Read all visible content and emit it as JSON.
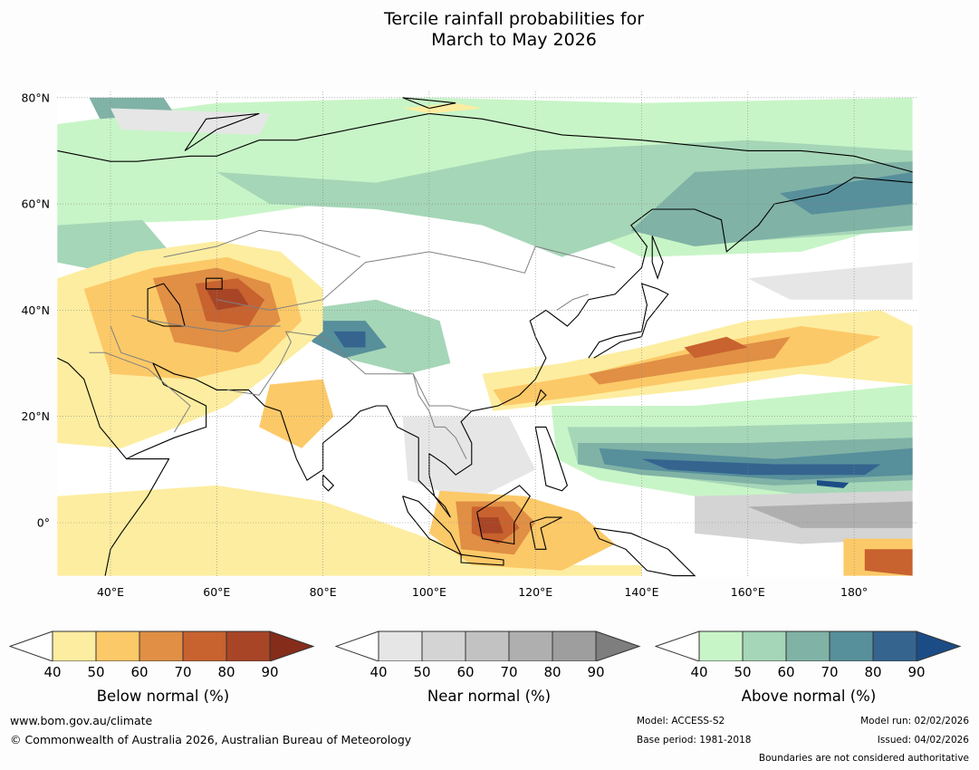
{
  "title": {
    "line1": "Tercile rainfall probabilities for",
    "line2": "March to May 2026"
  },
  "map": {
    "lat_labels": [
      "80°N",
      "60°N",
      "40°N",
      "20°N",
      "0°"
    ],
    "lon_labels": [
      "40°E",
      "60°E",
      "80°E",
      "100°E",
      "120°E",
      "140°E",
      "160°E",
      "180°"
    ],
    "colors": {
      "below": [
        "#fdeda0",
        "#fcc968",
        "#e08f45",
        "#c8622f",
        "#a84527",
        "#862c1b"
      ],
      "near": [
        "#e6e6e6",
        "#d4d4d4",
        "#c2c2c2",
        "#afafaf",
        "#9e9e9e",
        "#7e7e7e"
      ],
      "above": [
        "#c8f5c7",
        "#a5d6b7",
        "#80b2a6",
        "#578f9b",
        "#35648f",
        "#1b4c85"
      ],
      "land_outline": "#000000",
      "border": "#808080",
      "gridline": "#888888"
    }
  },
  "legends": [
    {
      "name": "Below normal (%)",
      "ticks": [
        "40",
        "50",
        "60",
        "70",
        "80",
        "90"
      ]
    },
    {
      "name": "Near normal (%)",
      "ticks": [
        "40",
        "50",
        "60",
        "70",
        "80",
        "90"
      ]
    },
    {
      "name": "Above normal (%)",
      "ticks": [
        "40",
        "50",
        "60",
        "70",
        "80",
        "90"
      ]
    }
  ],
  "footer": {
    "website": "www.bom.gov.au/climate",
    "copyright": "© Commonwealth of Australia 2026, Australian Bureau of Meteorology",
    "model": "Model: ACCESS-S2",
    "base_period": "Base period: 1981-2018",
    "model_run": "Model run: 02/02/2026",
    "issued": "Issued: 04/02/2026",
    "boundaries": "Boundaries are not considered authoritative"
  }
}
